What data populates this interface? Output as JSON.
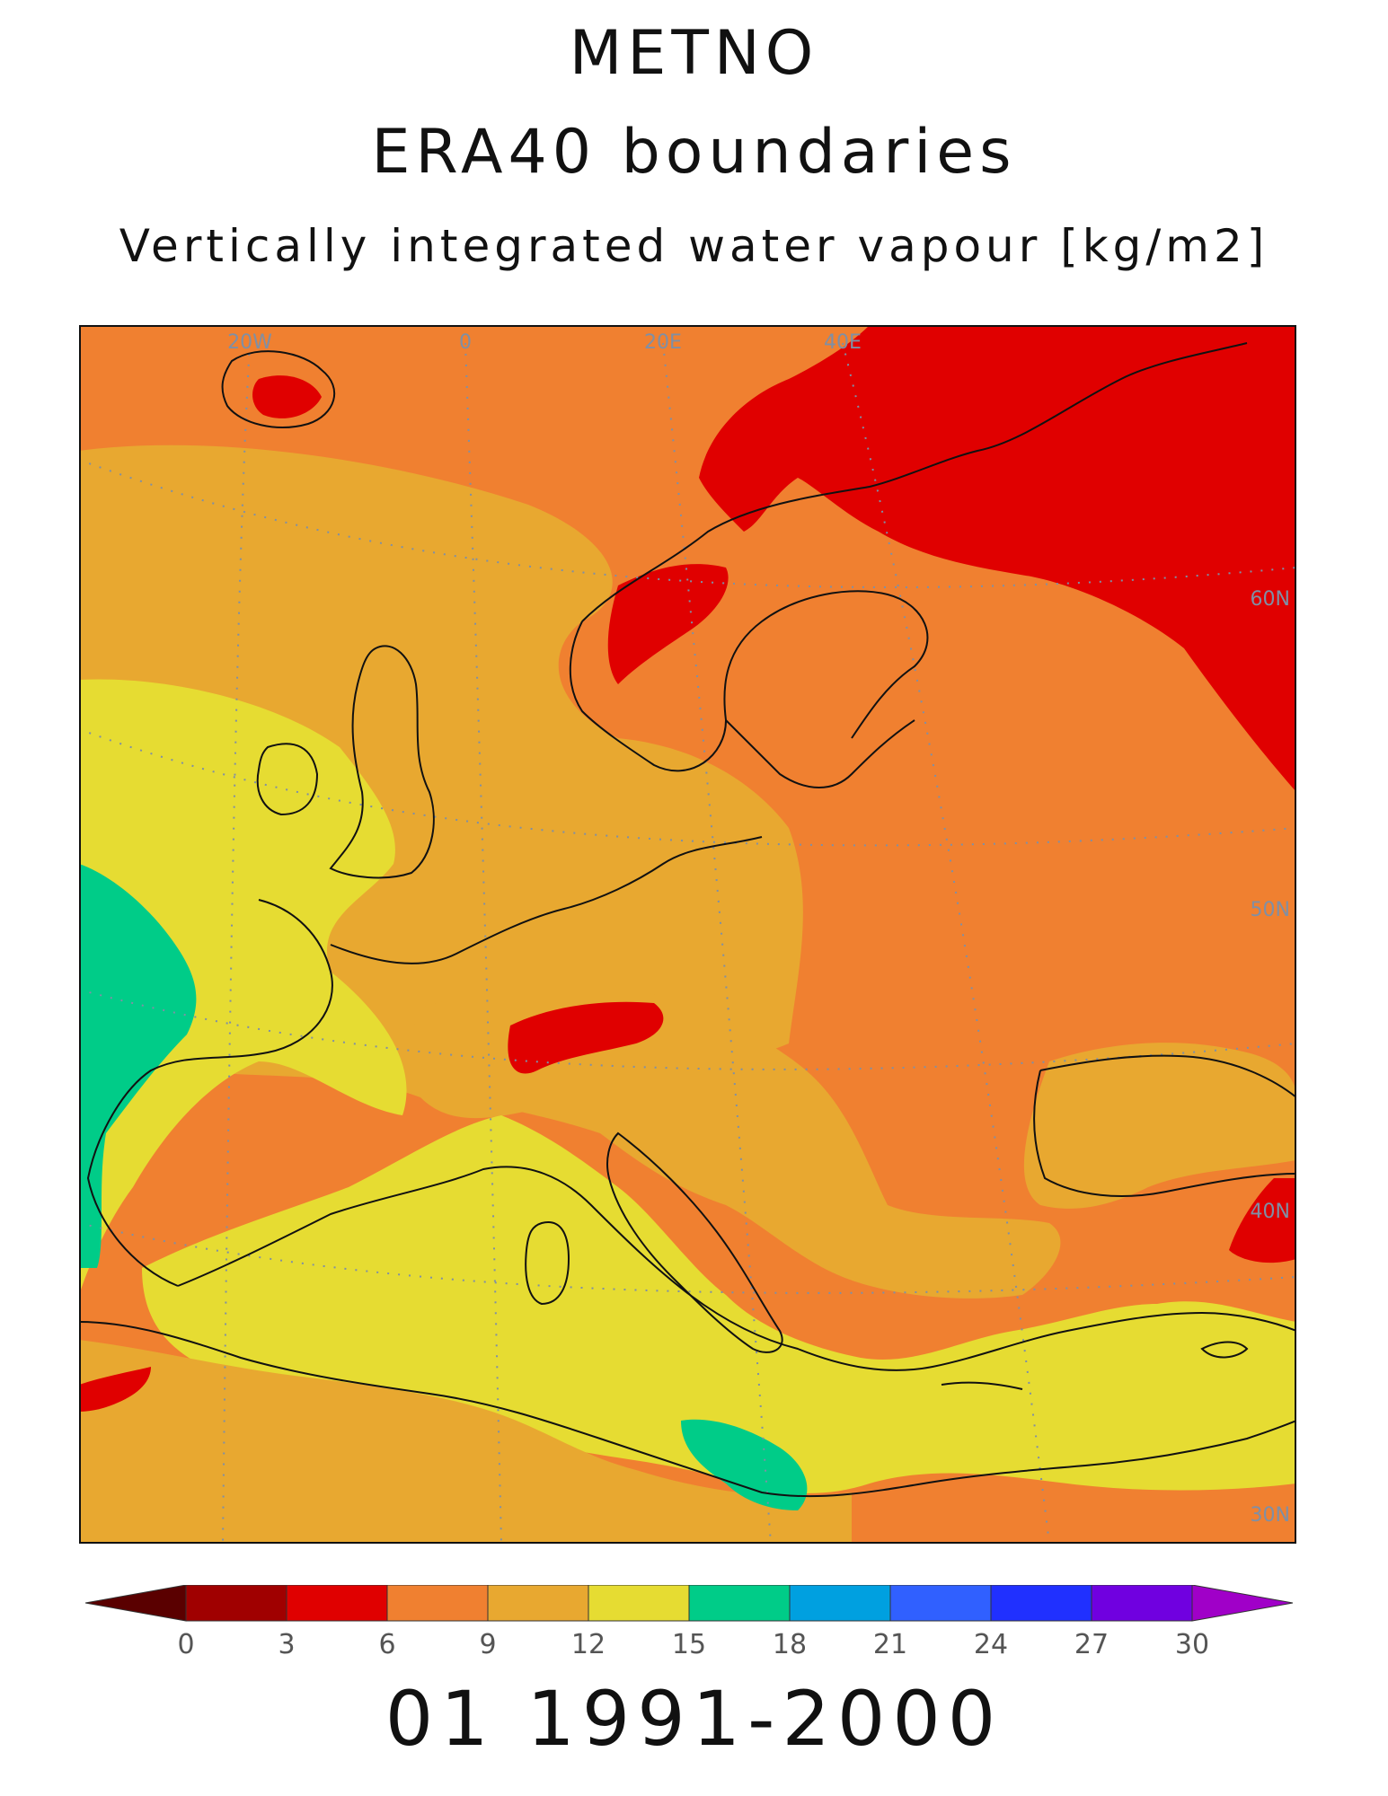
{
  "header": {
    "line1": "METNO",
    "line2": "ERA40 boundaries",
    "line3": "Vertically integrated water vapour [kg/m2]"
  },
  "footer": {
    "period": "01 1991-2000"
  },
  "map": {
    "grid_labels": {
      "lon": [
        "20W",
        "0",
        "20E",
        "40E"
      ],
      "lat": [
        "60N",
        "50N",
        "40N",
        "30N"
      ]
    }
  },
  "legend": {
    "ticks": [
      "0",
      "3",
      "6",
      "9",
      "12",
      "15",
      "18",
      "21",
      "24",
      "27",
      "30"
    ],
    "colors": [
      "#5a0000",
      "#a00000",
      "#e00000",
      "#f08030",
      "#e8a830",
      "#e6dc32",
      "#00cc88",
      "#00a0e0",
      "#3060ff",
      "#2030ff",
      "#7000e0",
      "#a000c8"
    ]
  }
}
